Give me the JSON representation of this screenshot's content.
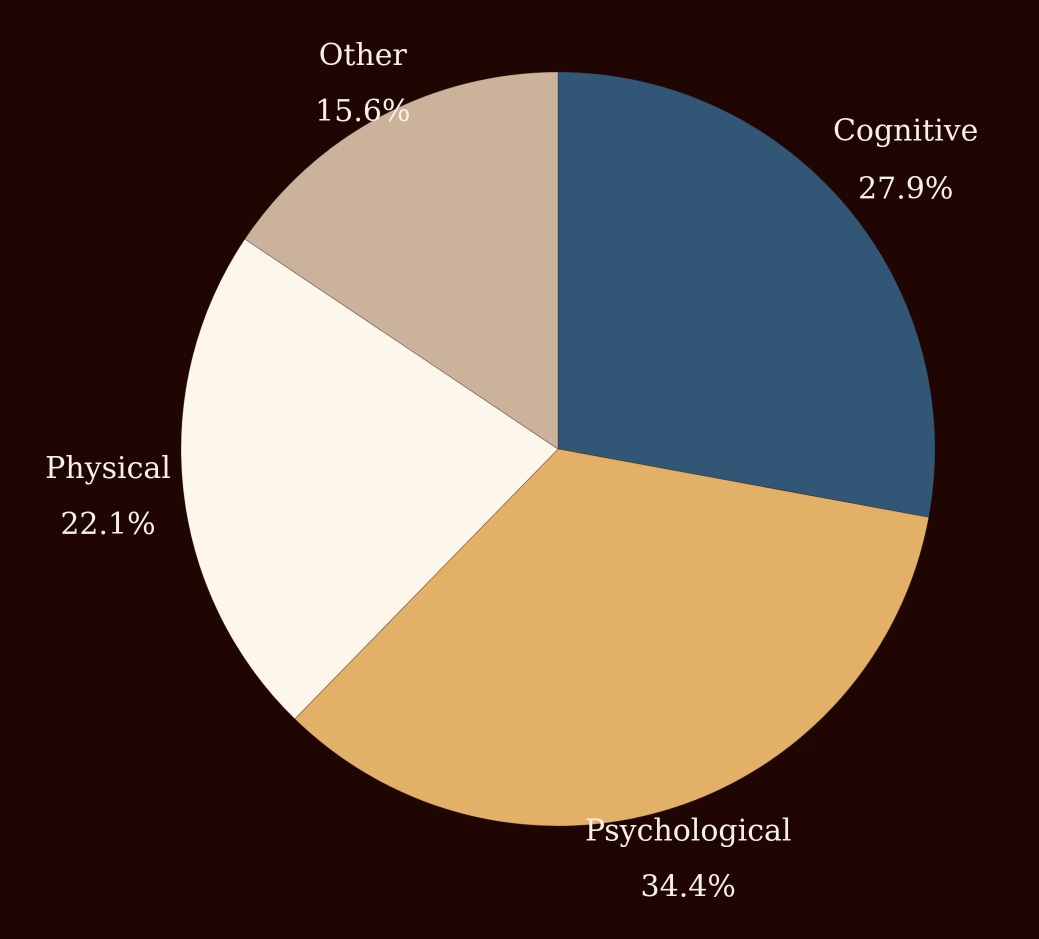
{
  "chart_data": {
    "type": "pie",
    "start_angle_deg": 90,
    "direction": "clockwise",
    "slices": [
      {
        "label": "Cognitive",
        "pct_label": "27.9%",
        "value": 27.9,
        "color": "#325675"
      },
      {
        "label": "Psychological",
        "pct_label": "34.4%",
        "value": 34.4,
        "color": "#e2b066"
      },
      {
        "label": "Physical",
        "pct_label": "22.1%",
        "value": 22.1,
        "color": "#fdf6ea"
      },
      {
        "label": "Other",
        "pct_label": "15.6%",
        "value": 15.6,
        "color": "#cbb29b"
      }
    ]
  },
  "colors": {
    "background": "#1f0603",
    "label_text": "#f6f0e6"
  }
}
